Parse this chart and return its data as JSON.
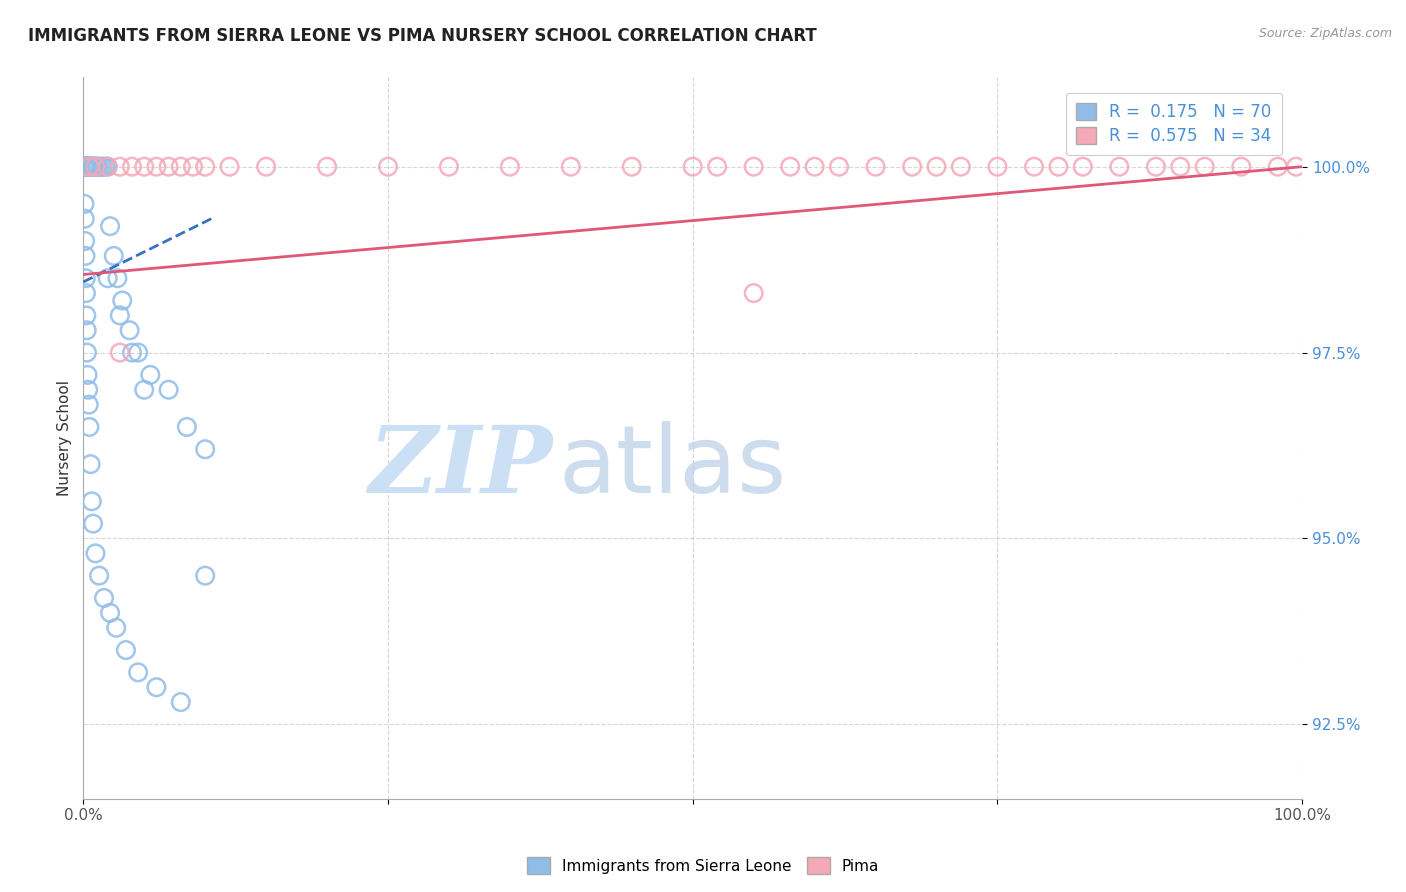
{
  "title": "IMMIGRANTS FROM SIERRA LEONE VS PIMA NURSERY SCHOOL CORRELATION CHART",
  "source_text": "Source: ZipAtlas.com",
  "ylabel": "Nursery School",
  "xlim": [
    0.0,
    100.0
  ],
  "ylim": [
    91.5,
    101.2
  ],
  "xtick_positions": [
    0.0,
    25.0,
    50.0,
    75.0,
    100.0
  ],
  "xtick_labels": [
    "0.0%",
    "",
    "",
    "",
    "100.0%"
  ],
  "ytick_vals": [
    92.5,
    95.0,
    97.5,
    100.0
  ],
  "ytick_labels": [
    "92.5%",
    "95.0%",
    "97.5%",
    "100.0%"
  ],
  "blue_color": "#90bce8",
  "pink_color": "#f5a8b8",
  "trend_blue_color": "#3a6fc4",
  "trend_pink_color": "#e05878",
  "watermark_zip": "ZIP",
  "watermark_atlas": "atlas",
  "watermark_color": "#cce0f5",
  "blue_scatter_x": [
    0.15,
    0.18,
    0.2,
    0.22,
    0.25,
    0.28,
    0.3,
    0.32,
    0.35,
    0.38,
    0.4,
    0.4,
    0.42,
    0.45,
    0.5,
    0.5,
    0.55,
    0.6,
    0.65,
    0.7,
    0.75,
    0.8,
    0.9,
    1.0,
    1.1,
    1.2,
    1.4,
    1.6,
    1.8,
    2.0,
    2.2,
    2.5,
    2.8,
    3.2,
    3.8,
    4.5,
    5.5,
    7.0,
    8.5,
    10.0,
    0.1,
    0.12,
    0.15,
    0.18,
    0.2,
    0.22,
    0.25,
    0.28,
    0.3,
    0.35,
    0.4,
    0.45,
    0.5,
    0.6,
    0.7,
    0.8,
    1.0,
    1.3,
    1.7,
    2.2,
    2.7,
    3.5,
    4.5,
    6.0,
    8.0,
    10.0,
    3.0,
    4.0,
    5.0,
    2.0
  ],
  "blue_scatter_y": [
    100.0,
    100.0,
    100.0,
    100.0,
    100.0,
    100.0,
    100.0,
    100.0,
    100.0,
    100.0,
    100.0,
    100.0,
    100.0,
    100.0,
    100.0,
    100.0,
    100.0,
    100.0,
    100.0,
    100.0,
    100.0,
    100.0,
    100.0,
    100.0,
    100.0,
    100.0,
    100.0,
    100.0,
    100.0,
    100.0,
    99.2,
    98.8,
    98.5,
    98.2,
    97.8,
    97.5,
    97.2,
    97.0,
    96.5,
    96.2,
    99.5,
    99.3,
    99.0,
    98.8,
    98.5,
    98.3,
    98.0,
    97.8,
    97.5,
    97.2,
    97.0,
    96.8,
    96.5,
    96.0,
    95.5,
    95.2,
    94.8,
    94.5,
    94.2,
    94.0,
    93.8,
    93.5,
    93.2,
    93.0,
    92.8,
    94.5,
    98.0,
    97.5,
    97.0,
    98.5
  ],
  "pink_scatter_x": [
    0.5,
    1.0,
    2.0,
    3.0,
    4.0,
    5.0,
    6.0,
    7.0,
    8.0,
    9.0,
    10.0,
    12.0,
    15.0,
    20.0,
    25.0,
    30.0,
    35.0,
    40.0,
    45.0,
    50.0,
    52.0,
    55.0,
    58.0,
    60.0,
    62.0,
    65.0,
    68.0,
    70.0,
    72.0,
    75.0,
    78.0,
    80.0,
    82.0,
    85.0,
    88.0,
    90.0,
    92.0,
    95.0,
    98.0,
    99.5,
    55.0,
    3.0
  ],
  "pink_scatter_y": [
    100.0,
    100.0,
    100.0,
    100.0,
    100.0,
    100.0,
    100.0,
    100.0,
    100.0,
    100.0,
    100.0,
    100.0,
    100.0,
    100.0,
    100.0,
    100.0,
    100.0,
    100.0,
    100.0,
    100.0,
    100.0,
    100.0,
    100.0,
    100.0,
    100.0,
    100.0,
    100.0,
    100.0,
    100.0,
    100.0,
    100.0,
    100.0,
    100.0,
    100.0,
    100.0,
    100.0,
    100.0,
    100.0,
    100.0,
    100.0,
    98.3,
    97.5
  ],
  "blue_trend_x0": 0.0,
  "blue_trend_y0": 98.45,
  "blue_trend_x1": 10.5,
  "blue_trend_y1": 99.3,
  "pink_trend_x0": 0.0,
  "pink_trend_y0": 98.55,
  "pink_trend_x1": 100.0,
  "pink_trend_y1": 100.0
}
